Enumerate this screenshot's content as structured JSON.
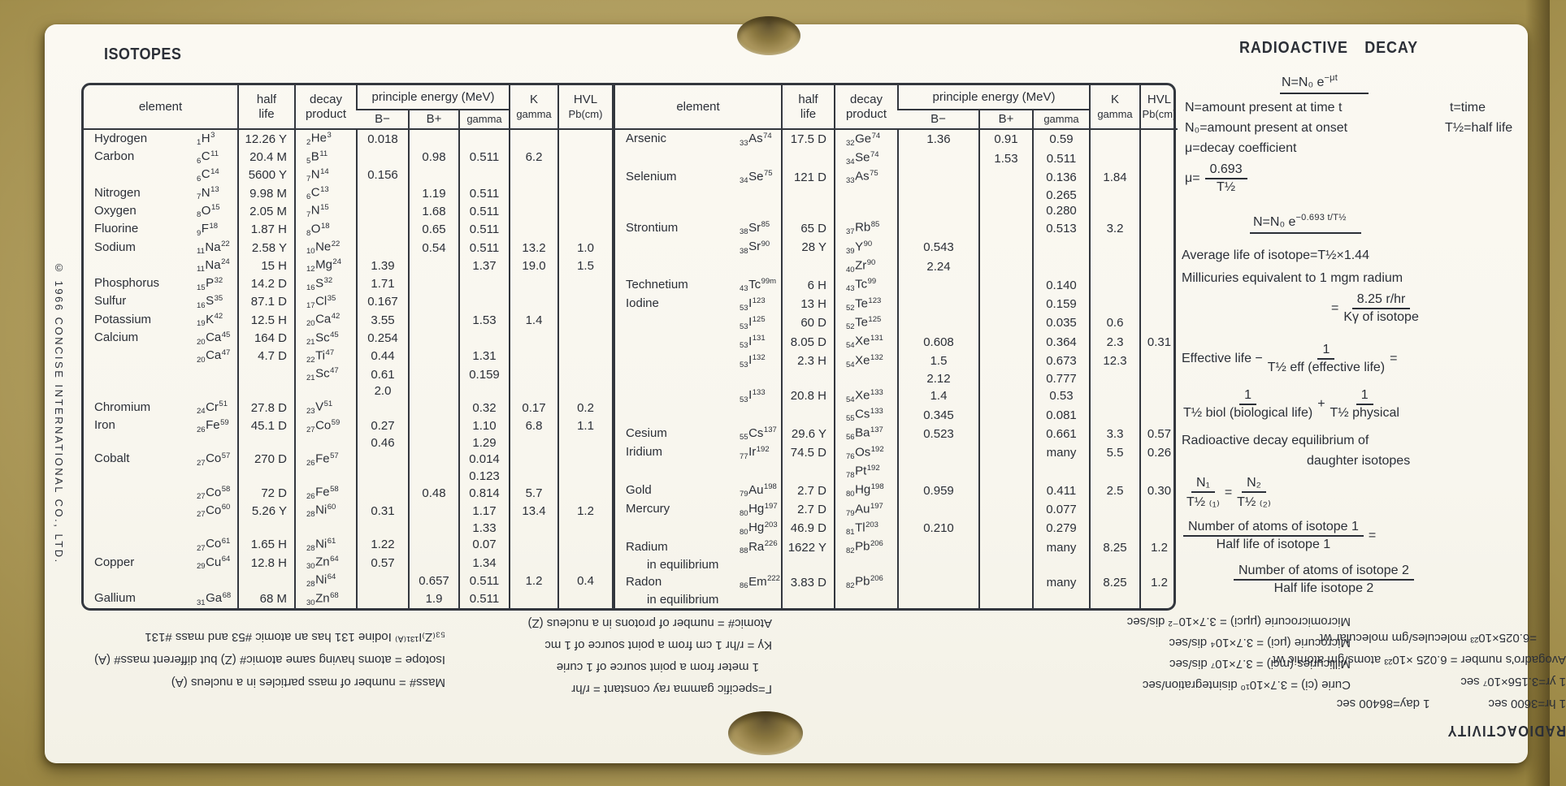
{
  "colors": {
    "background": "#b09d5f",
    "card": "#f9f7ef",
    "ink": "#2b2f37",
    "table_line": "#33373e"
  },
  "page": {
    "isotopes_title": "ISOTOPES",
    "copyright": "© 1966 CONCISE INTERNATIONAL CO., LTD."
  },
  "table_headers": {
    "element": "element",
    "half_life": [
      "half",
      "life"
    ],
    "decay_product": [
      "decay",
      "product"
    ],
    "principle_energy": "principle energy (MeV)",
    "b_minus": "B−",
    "b_plus": "B+",
    "gamma": "gamma",
    "k_gamma": [
      "K",
      "gamma"
    ],
    "hvl": [
      "HVL",
      "Pb(cm)"
    ]
  },
  "isotope_table_left": {
    "rows": [
      {
        "n": "Hydrogen",
        "i": [
          "1",
          "H",
          "3"
        ],
        "h": "12.26 Y",
        "d": [
          "2",
          "He",
          "3"
        ],
        "bm": "0.018"
      },
      {
        "n": "Carbon",
        "i": [
          "6",
          "C",
          "11"
        ],
        "h": "20.4 M",
        "d": [
          "5",
          "B",
          "11"
        ],
        "bp": "0.98",
        "g": "0.511",
        "k": "6.2"
      },
      {
        "i": [
          "6",
          "C",
          "14"
        ],
        "h": "5600 Y",
        "d": [
          "7",
          "N",
          "14"
        ],
        "bm": "0.156"
      },
      {
        "n": "Nitrogen",
        "i": [
          "7",
          "N",
          "13"
        ],
        "h": "9.98 M",
        "d": [
          "6",
          "C",
          "13"
        ],
        "bp": "1.19",
        "g": "0.511"
      },
      {
        "n": "Oxygen",
        "i": [
          "8",
          "O",
          "15"
        ],
        "h": "2.05 M",
        "d": [
          "7",
          "N",
          "15"
        ],
        "bp": "1.68",
        "g": "0.511"
      },
      {
        "n": "Fluorine",
        "i": [
          "9",
          "F",
          "18"
        ],
        "h": "1.87 H",
        "d": [
          "8",
          "O",
          "18"
        ],
        "bp": "0.65",
        "g": "0.511"
      },
      {
        "n": "Sodium",
        "i": [
          "11",
          "Na",
          "22"
        ],
        "h": "2.58 Y",
        "d": [
          "10",
          "Ne",
          "22"
        ],
        "bp": "0.54",
        "g": "0.511",
        "k": "13.2",
        "v": "1.0"
      },
      {
        "i": [
          "11",
          "Na",
          "24"
        ],
        "h": "15 H",
        "d": [
          "12",
          "Mg",
          "24"
        ],
        "bm": "1.39",
        "g": "1.37",
        "k": "19.0",
        "v": "1.5"
      },
      {
        "n": "Phosphorus",
        "i": [
          "15",
          "P",
          "32"
        ],
        "h": "14.2 D",
        "d": [
          "16",
          "S",
          "32"
        ],
        "bm": "1.71"
      },
      {
        "n": "Sulfur",
        "i": [
          "16",
          "S",
          "35"
        ],
        "h": "87.1 D",
        "d": [
          "17",
          "Cl",
          "35"
        ],
        "bm": "0.167"
      },
      {
        "n": "Potassium",
        "i": [
          "19",
          "K",
          "42"
        ],
        "h": "12.5 H",
        "d": [
          "20",
          "Ca",
          "42"
        ],
        "bm": "3.55",
        "g": "1.53",
        "k": "1.4"
      },
      {
        "n": "Calcium",
        "i": [
          "20",
          "Ca",
          "45"
        ],
        "h": "164 D",
        "d": [
          "21",
          "Sc",
          "45"
        ],
        "bm": "0.254"
      },
      {
        "i": [
          "20",
          "Ca",
          "47"
        ],
        "h": "4.7 D",
        "d": [
          "22",
          "Ti",
          "47"
        ],
        "bm": "0.44",
        "g": "1.31"
      },
      {
        "d": [
          "21",
          "Sc",
          "47"
        ],
        "bm": "0.61",
        "g": "0.159"
      },
      {
        "bm": "2.0"
      },
      {
        "n": "Chromium",
        "i": [
          "24",
          "Cr",
          "51"
        ],
        "h": "27.8 D",
        "d": [
          "23",
          "V",
          "51"
        ],
        "g": "0.32",
        "k": "0.17",
        "v": "0.2"
      },
      {
        "n": "Iron",
        "i": [
          "26",
          "Fe",
          "59"
        ],
        "h": "45.1 D",
        "d": [
          "27",
          "Co",
          "59"
        ],
        "bm": "0.27",
        "g": "1.10",
        "k": "6.8",
        "v": "1.1"
      },
      {
        "bm": "0.46",
        "g": "1.29"
      },
      {
        "n": "Cobalt",
        "i": [
          "27",
          "Co",
          "57"
        ],
        "h": "270 D",
        "d": [
          "26",
          "Fe",
          "57"
        ],
        "g": "0.014"
      },
      {
        "g": "0.123"
      },
      {
        "i": [
          "27",
          "Co",
          "58"
        ],
        "h": "72 D",
        "d": [
          "26",
          "Fe",
          "58"
        ],
        "bp": "0.48",
        "g": "0.814",
        "k": "5.7"
      },
      {
        "i": [
          "27",
          "Co",
          "60"
        ],
        "h": "5.26 Y",
        "d": [
          "28",
          "Ni",
          "60"
        ],
        "bm": "0.31",
        "g": "1.17",
        "k": "13.4",
        "v": "1.2"
      },
      {
        "g": "1.33"
      },
      {
        "i": [
          "27",
          "Co",
          "61"
        ],
        "h": "1.65 H",
        "d": [
          "28",
          "Ni",
          "61"
        ],
        "bm": "1.22",
        "g": "0.07"
      },
      {
        "n": "Copper",
        "i": [
          "29",
          "Cu",
          "64"
        ],
        "h": "12.8 H",
        "d": [
          "30",
          "Zn",
          "64"
        ],
        "bm": "0.57",
        "g": "1.34"
      },
      {
        "d": [
          "28",
          "Ni",
          "64"
        ],
        "bp": "0.657",
        "g": "0.511",
        "k": "1.2",
        "v": "0.4"
      },
      {
        "n": "Gallium",
        "i": [
          "31",
          "Ga",
          "68"
        ],
        "h": "68 M",
        "d": [
          "30",
          "Zn",
          "68"
        ],
        "bp": "1.9",
        "g": "0.511"
      }
    ]
  },
  "isotope_table_right": {
    "rows": [
      {
        "n": "Arsenic",
        "i": [
          "33",
          "As",
          "74"
        ],
        "h": "17.5 D",
        "d": [
          "32",
          "Ge",
          "74"
        ],
        "bm": "1.36",
        "bp": "0.91",
        "g": "0.59"
      },
      {
        "d": [
          "34",
          "Se",
          "74"
        ],
        "bp": "1.53",
        "g": "0.511"
      },
      {
        "n": "Selenium",
        "i": [
          "34",
          "Se",
          "75"
        ],
        "h": "121 D",
        "d": [
          "33",
          "As",
          "75"
        ],
        "g": "0.136",
        "k": "1.84"
      },
      {
        "g": "0.265"
      },
      {
        "g": "0.280"
      },
      {
        "n": "Strontium",
        "i": [
          "38",
          "Sr",
          "85"
        ],
        "h": "65 D",
        "d": [
          "37",
          "Rb",
          "85"
        ],
        "g": "0.513",
        "k": "3.2"
      },
      {
        "i": [
          "38",
          "Sr",
          "90"
        ],
        "h": "28 Y",
        "d": [
          "39",
          "Y",
          "90"
        ],
        "bm": "0.543"
      },
      {
        "d": [
          "40",
          "Zr",
          "90"
        ],
        "bm": "2.24"
      },
      {
        "n": "Technetium",
        "i": [
          "43",
          "Tc",
          "99m"
        ],
        "h": "6 H",
        "d": [
          "43",
          "Tc",
          "99"
        ],
        "g": "0.140"
      },
      {
        "n": "Iodine",
        "i": [
          "53",
          "I",
          "123"
        ],
        "h": "13 H",
        "d": [
          "52",
          "Te",
          "123"
        ],
        "g": "0.159"
      },
      {
        "i": [
          "53",
          "I",
          "125"
        ],
        "h": "60 D",
        "d": [
          "52",
          "Te",
          "125"
        ],
        "g": "0.035",
        "k": "0.6"
      },
      {
        "i": [
          "53",
          "I",
          "131"
        ],
        "h": "8.05 D",
        "d": [
          "54",
          "Xe",
          "131"
        ],
        "bm": "0.608",
        "g": "0.364",
        "k": "2.3",
        "v": "0.31"
      },
      {
        "i": [
          "53",
          "I",
          "132"
        ],
        "h": "2.3 H",
        "d": [
          "54",
          "Xe",
          "132"
        ],
        "bm": "1.5",
        "g": "0.673",
        "k": "12.3"
      },
      {
        "bm": "2.12",
        "g": "0.777"
      },
      {
        "i": [
          "53",
          "I",
          "133"
        ],
        "h": "20.8 H",
        "d": [
          "54",
          "Xe",
          "133"
        ],
        "bm": "1.4",
        "g": "0.53"
      },
      {
        "d": [
          "55",
          "Cs",
          "133"
        ],
        "bm": "0.345",
        "g": "0.081"
      },
      {
        "n": "Cesium",
        "i": [
          "55",
          "Cs",
          "137"
        ],
        "h": "29.6 Y",
        "d": [
          "56",
          "Ba",
          "137"
        ],
        "bm": "0.523",
        "g": "0.661",
        "k": "3.3",
        "v": "0.57"
      },
      {
        "n": "Iridium",
        "i": [
          "77",
          "Ir",
          "192"
        ],
        "h": "74.5 D",
        "d": [
          "76",
          "Os",
          "192"
        ],
        "g": "many",
        "k": "5.5",
        "v": "0.26"
      },
      {
        "d": [
          "78",
          "Pt",
          "192"
        ]
      },
      {
        "n": "Gold",
        "i": [
          "79",
          "Au",
          "198"
        ],
        "h": "2.7 D",
        "d": [
          "80",
          "Hg",
          "198"
        ],
        "bm": "0.959",
        "g": "0.411",
        "k": "2.5",
        "v": "0.30"
      },
      {
        "n": "Mercury",
        "i": [
          "80",
          "Hg",
          "197"
        ],
        "h": "2.7 D",
        "d": [
          "79",
          "Au",
          "197"
        ],
        "g": "0.077"
      },
      {
        "i": [
          "80",
          "Hg",
          "203"
        ],
        "h": "46.9 D",
        "d": [
          "81",
          "Tl",
          "203"
        ],
        "bm": "0.210",
        "g": "0.279"
      },
      {
        "n": "Radium",
        "i": [
          "88",
          "Ra",
          "226"
        ],
        "h": "1622 Y",
        "d": [
          "82",
          "Pb",
          "206"
        ],
        "g": "many",
        "k": "8.25",
        "v": "1.2"
      },
      {
        "n": "in equilibrium",
        "eq": true
      },
      {
        "n": "Radon",
        "i": [
          "86",
          "Em",
          "222"
        ],
        "h": "3.83 D",
        "d": [
          "82",
          "Pb",
          "206"
        ],
        "g": "many",
        "k": "8.25",
        "v": "1.2"
      },
      {
        "n": "in equilibrium",
        "eq": true
      }
    ]
  },
  "decay_panel": {
    "title": "RADIOACTIVE DECAY",
    "formula1_base": "N=N₀ e",
    "formula1_exp": "−μt",
    "def_n": "N=amount present at time t",
    "def_t": "t=time",
    "def_n0": "N₀=amount present at onset",
    "def_thalf": "T½=half life",
    "def_mu": "μ=decay coefficient",
    "mu_lhs": "μ=",
    "mu_num": "0.693",
    "mu_den": "T½",
    "formula2_base": "N=N₀ e",
    "formula2_exp": "−0.693 t/T½",
    "avg_life": "Average life of isotope=T½×1.44",
    "millicuries": "Millicuries equivalent to 1 mgm radium",
    "mc_eq": "=",
    "mc_num": "8.25 r/hr",
    "mc_den": "Kγ of isotope",
    "eff_prefix": "Effective life −",
    "eff_num": "1",
    "eff_den": "T½ eff (effective life)",
    "eff_eq": "=",
    "bio_num": "1",
    "bio_den": "T½ biol (biological life)",
    "plus": "+",
    "phys_num": "1",
    "phys_den": "T½ physical",
    "equilibrium_1": "Radioactive decay equilibrium of",
    "equilibrium_2": "daughter isotopes",
    "n1_num": "N₁",
    "n1_den": "T½ ₍₁₎",
    "frac_eq": "=",
    "n2_num": "N₂",
    "n2_den": "T½ ₍₂₎",
    "atoms1_num": "Number of atoms of isotope 1",
    "atoms1_den": "Half life of isotope 1",
    "atoms_eq": "=",
    "atoms2_num": "Number of atoms of isotope 2",
    "atoms2_den": "Half life isotope 2"
  },
  "mass_block": {
    "lines": [
      "Mass# = number of mass particles in a nucleus (A)",
      "Isotope = atoms having same atomic# (Z) but different mass# (A)",
      "₅₃₍Z₎I¹³¹⁽ᴬ⁾ Iodine 131 has an atomic #53 and mass #131"
    ]
  },
  "gamma_block": {
    "lines": [
      "Γ=specific gamma ray constant = r/hr",
      "1 meter from a point source of 1 curie",
      "Kγ = r/hr 1 cm from a point source of 1 mc",
      "Atomic# = number of protons in a nucleus (Z)"
    ]
  },
  "curie_block": {
    "lines": [
      "Curie (ci) = 3.7×10¹⁰ disintegration/sec",
      "Millicuries (mci) = 3.7×10⁷ dis/sec",
      "Microcurie (μci) = 3.7×10⁴ dis/sec",
      "Micromicrocurie (μμci) = 3.7×10⁻² dis/sec"
    ]
  },
  "radioactivity_block": {
    "title": "RADIOACTIVITY",
    "line_hr": "1 hr=3600 sec",
    "line_day": "1 day=86400 sec",
    "line_yr": "1 yr=3.156×10⁷ sec",
    "avogadro_1": "Avogadro's number = 6.025 ×10²³ atoms/gm atomic wt",
    "avogadro_2": "=6.025×10²³ molecules/gm molecular wt"
  }
}
